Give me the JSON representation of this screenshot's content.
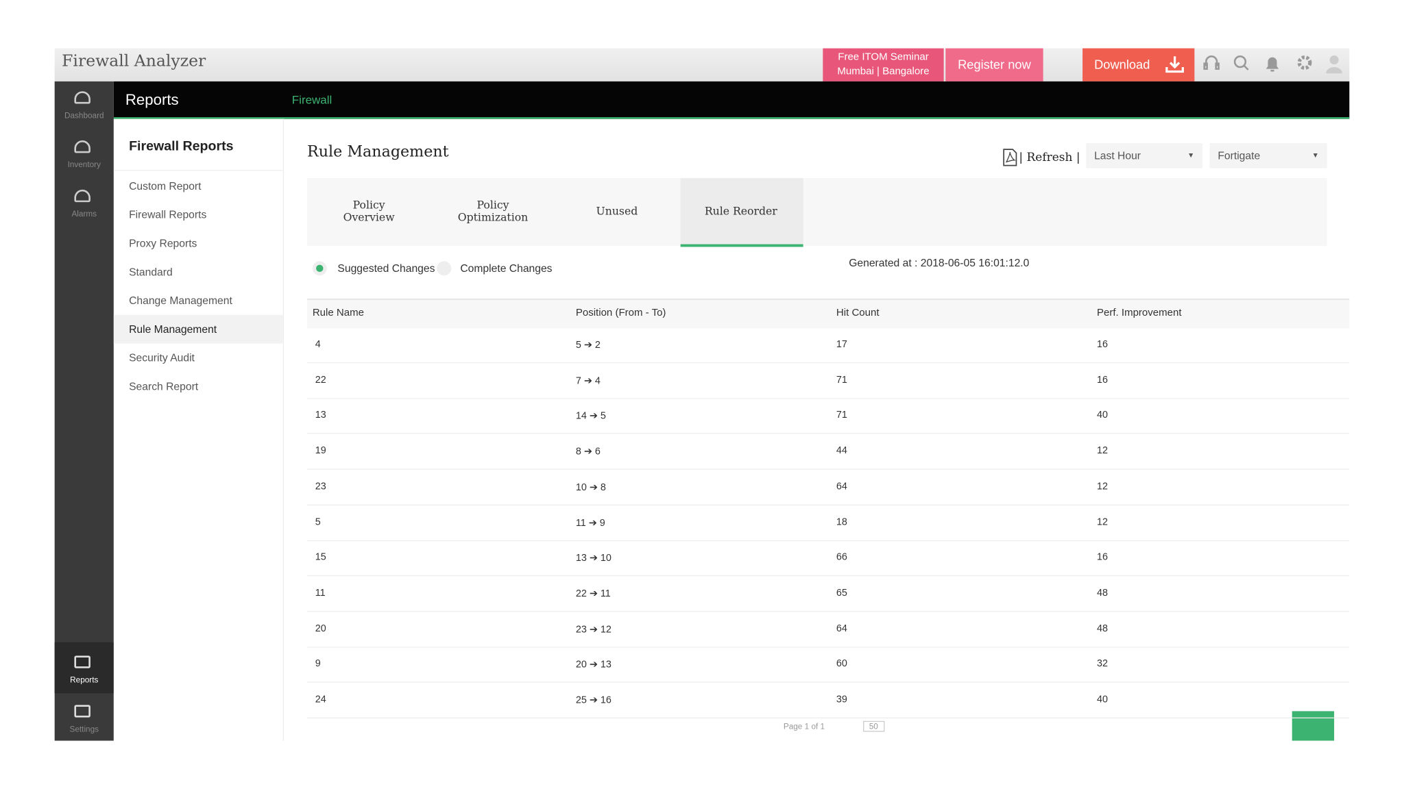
{
  "header": {
    "app_title": "Firewall Analyzer",
    "promo": [
      "Free ITOM Seminar",
      "Mumbai | Bangalore"
    ],
    "register": "Register now",
    "download": "Download"
  },
  "nav": {
    "section": "Reports",
    "breadcrumb": "Firewall"
  },
  "sidebar": {
    "items": [
      "Dashboard",
      "Inventory",
      "Alarms"
    ],
    "bottom_items": [
      "Reports",
      "Settings"
    ]
  },
  "submenu": {
    "title": "Firewall Reports",
    "items": [
      "Custom Report",
      "Firewall Reports",
      "Proxy Reports",
      "Standard",
      "Change Management",
      "Rule Management",
      "Security Audit",
      "Search Report"
    ]
  },
  "main": {
    "title": "Rule Management",
    "refresh": "Refresh",
    "time_range": "Last Hour",
    "device": "Fortigate",
    "tabs": [
      "Policy Overview",
      "Policy Optimization",
      "Unused",
      "Rule Reorder"
    ],
    "options": [
      "Suggested Changes",
      "Complete Changes"
    ],
    "generated": "Generated at : 2018-06-05 16:01:12.0"
  },
  "table": {
    "columns": [
      "Rule Name",
      "Position (From - To)",
      "Hit Count",
      "Perf. Improvement"
    ],
    "rows": [
      {
        "rule": "4",
        "from": "5",
        "to": "2",
        "hits": "17",
        "perf": "16"
      },
      {
        "rule": "22",
        "from": "7",
        "to": "4",
        "hits": "71",
        "perf": "16"
      },
      {
        "rule": "13",
        "from": "14",
        "to": "5",
        "hits": "71",
        "perf": "40"
      },
      {
        "rule": "19",
        "from": "8",
        "to": "6",
        "hits": "44",
        "perf": "12"
      },
      {
        "rule": "23",
        "from": "10",
        "to": "8",
        "hits": "64",
        "perf": "12"
      },
      {
        "rule": "5",
        "from": "11",
        "to": "9",
        "hits": "18",
        "perf": "12"
      },
      {
        "rule": "15",
        "from": "13",
        "to": "10",
        "hits": "66",
        "perf": "16"
      },
      {
        "rule": "11",
        "from": "22",
        "to": "11",
        "hits": "65",
        "perf": "48"
      },
      {
        "rule": "20",
        "from": "23",
        "to": "12",
        "hits": "64",
        "perf": "48"
      },
      {
        "rule": "9",
        "from": "20",
        "to": "13",
        "hits": "60",
        "perf": "32"
      },
      {
        "rule": "24",
        "from": "25",
        "to": "16",
        "hits": "39",
        "perf": "40"
      }
    ]
  },
  "pagination": {
    "page_label": "Page",
    "page": "1",
    "of": "of 1",
    "per_page": "50"
  }
}
